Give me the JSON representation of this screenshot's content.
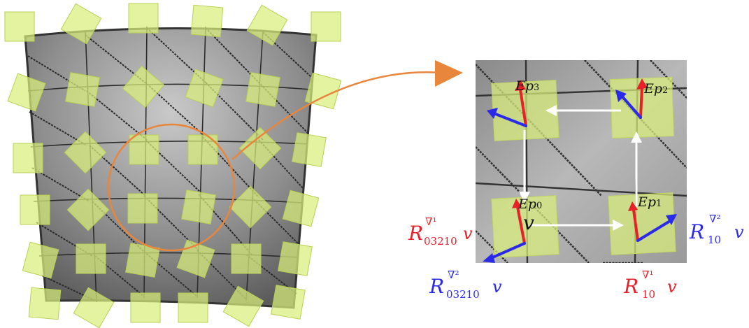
{
  "figure": {
    "ep_labels": [
      {
        "base": "Ep",
        "sub": "3"
      },
      {
        "base": "Ep",
        "sub": "2"
      },
      {
        "base": "Ep",
        "sub": "0"
      },
      {
        "base": "Ep",
        "sub": "1"
      }
    ],
    "vector_label": "v",
    "transport_labels": {
      "red_left": {
        "R": "R",
        "sup": "∇¹",
        "sub": "03210",
        "v": "v"
      },
      "blue_left": {
        "R": "R",
        "sup": "∇²",
        "sub": "03210",
        "v": "v"
      },
      "blue_right": {
        "R": "R",
        "sup": "∇²",
        "sub": "10",
        "v": "v"
      },
      "red_right": {
        "R": "R",
        "sup": "∇¹",
        "sub": "10",
        "v": "v"
      }
    },
    "colors": {
      "red": "#e8202a",
      "blue": "#2a2ae8",
      "patch": "#d9ee7a",
      "orange": "#e8863c",
      "mesh": "#8a8a8a"
    }
  }
}
